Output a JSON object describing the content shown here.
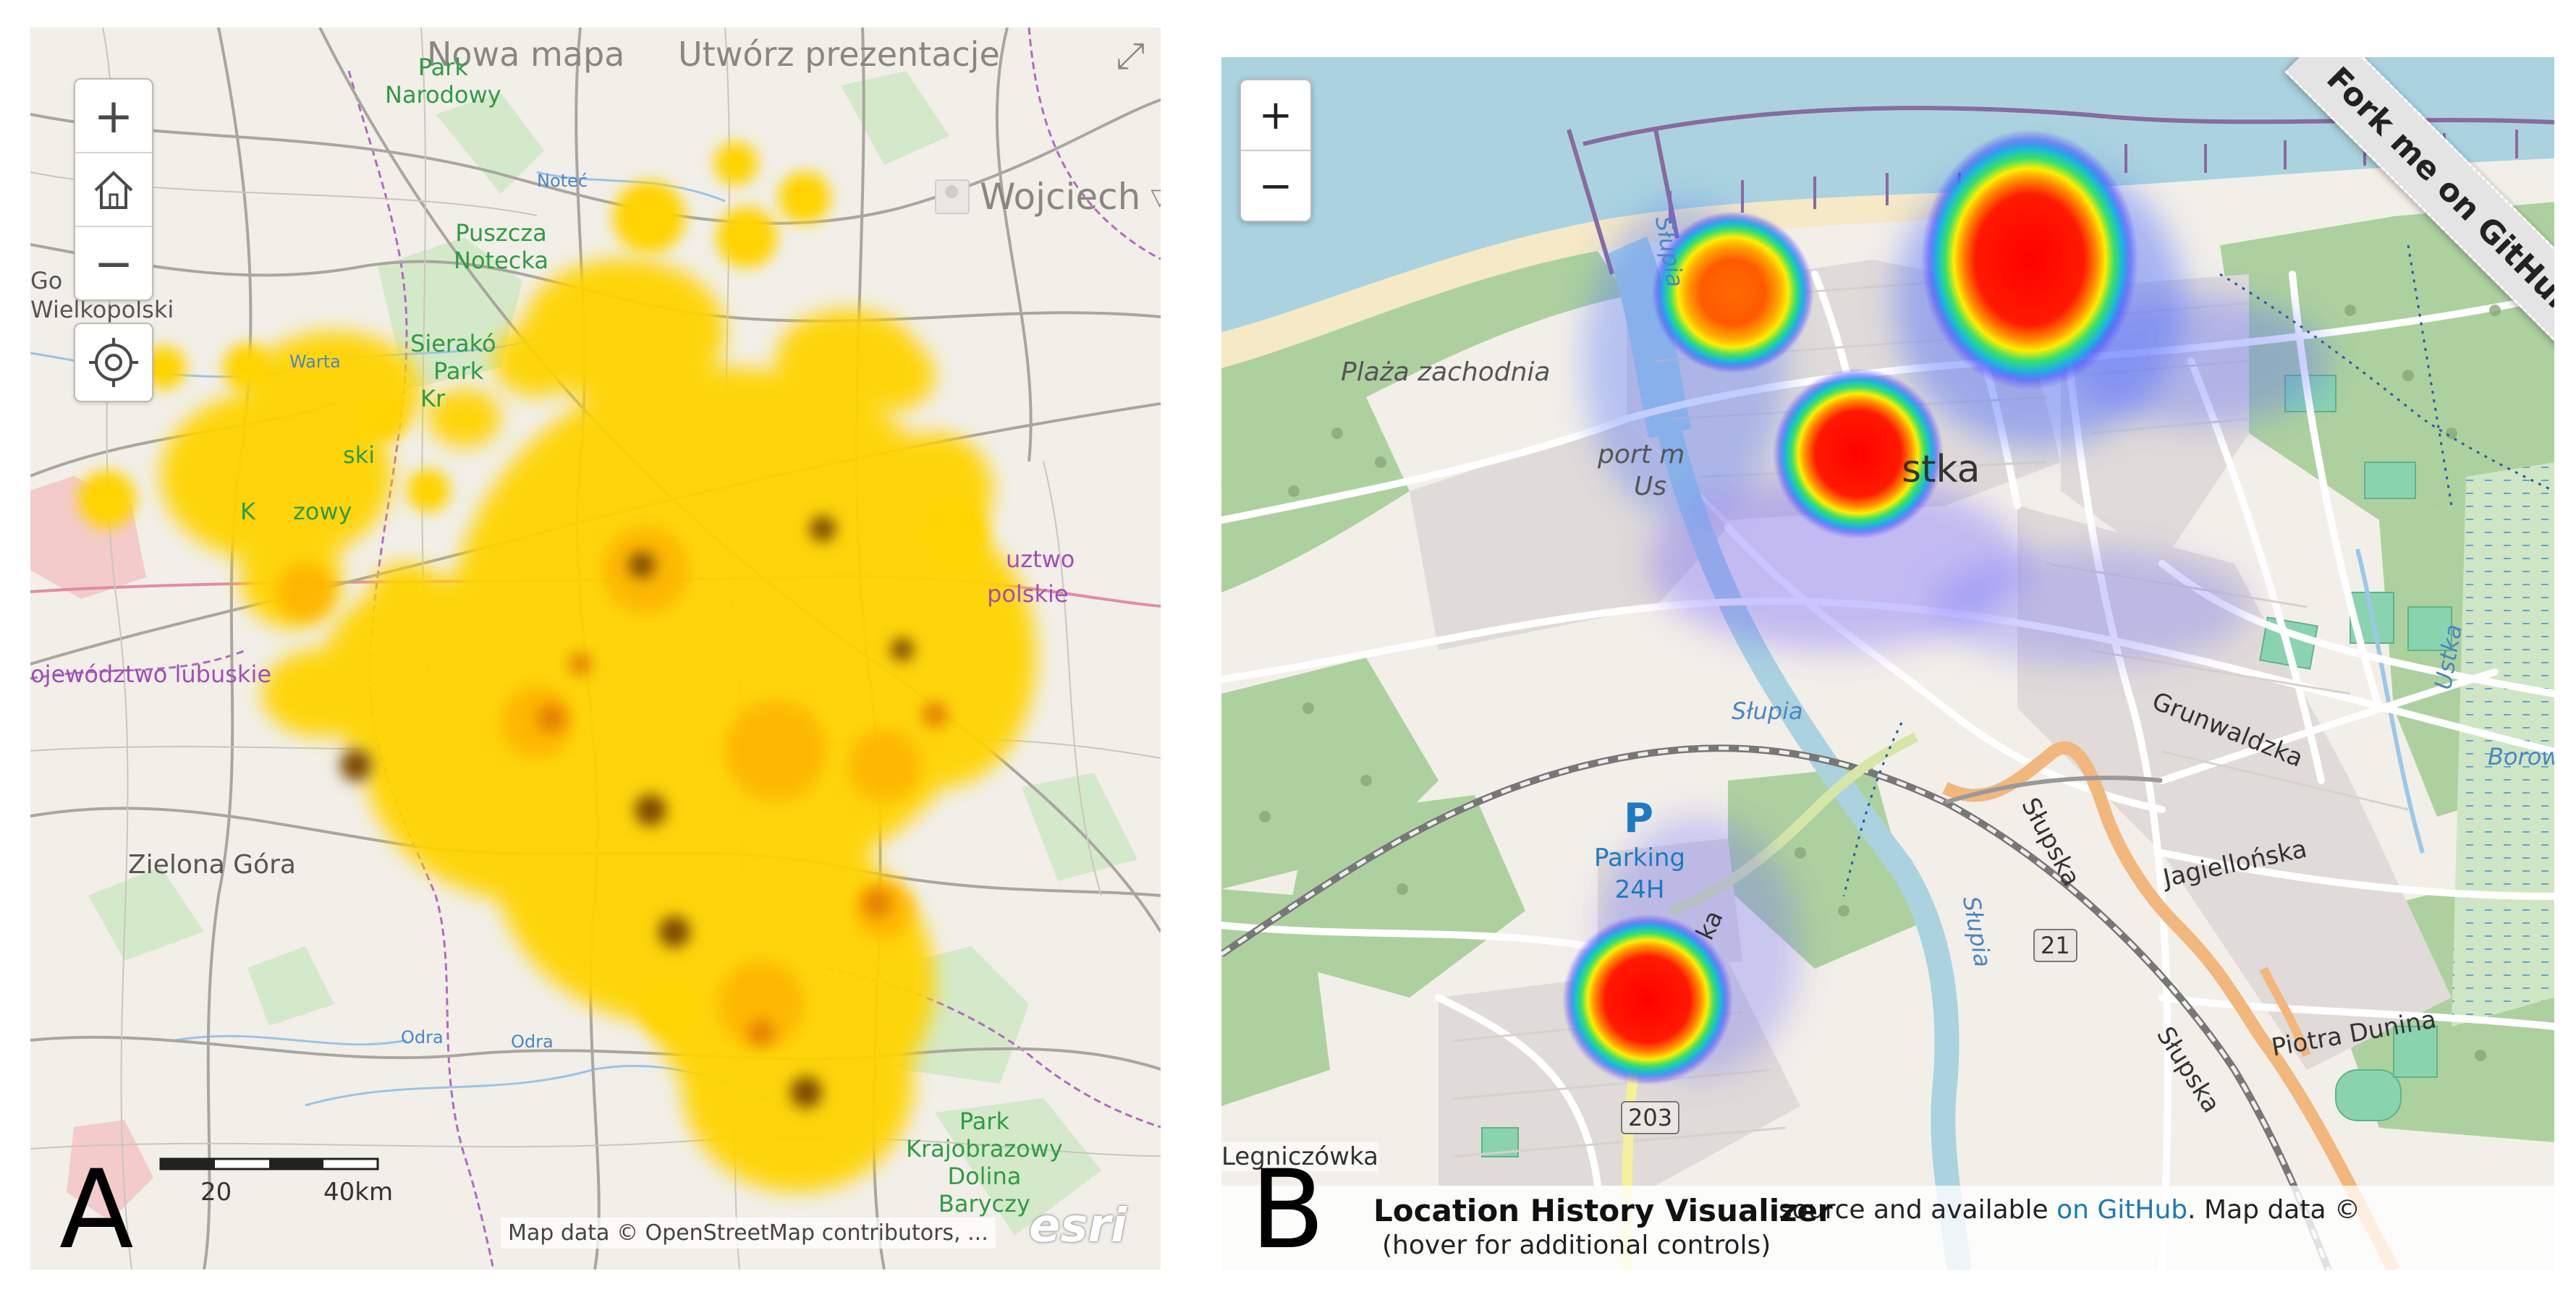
{
  "panelA": {
    "letter": "A",
    "menu": {
      "new_map": "Nowa mapa",
      "presentation": "Utwórz prezentacje"
    },
    "user": "Wojciech",
    "controls": {
      "zoom_in": "+",
      "home": "home-icon",
      "zoom_out": "−",
      "locate": "locate-icon"
    },
    "scale": {
      "mid": "20",
      "end": "40km"
    },
    "attribution": "Map data © OpenStreetMap contributors, ...",
    "esri": "esri",
    "labels": {
      "city1": "Zielona Góra",
      "region_lubuskie": "ojewództwo lubuskie",
      "region_wielk_1": "uztwo",
      "region_wielk_2": "polskie",
      "gorzow_1": "Go",
      "gorzow_2": "Wielkopolski",
      "park_narodowy_1": "Park",
      "park_narodowy_2": "Narodowy",
      "puszcza_1": "Puszcza",
      "puszcza_2": "Notecka",
      "sierakow_1": "Sierakó",
      "sierakow_2": "Park",
      "sierakow_3": "Kr",
      "krz_1": "ski",
      "krz_2": "K",
      "krz_3": "zowy",
      "park_krajo_1": "Park",
      "park_krajo_2": "Krajobrazowy",
      "park_krajo_3": "Dolina",
      "park_krajo_4": "Baryczy",
      "river_notec": "Noteć",
      "river_warta": "Warta",
      "river_odra1": "Odra",
      "river_odra2": "Odra"
    },
    "heat_color": "#ffd400"
  },
  "panelB": {
    "letter": "B",
    "zoom_in": "+",
    "zoom_out": "−",
    "ribbon": "Fork me on GitHub",
    "title": "Location History Visualizer",
    "subtitle": "(hover for additional controls)",
    "credit_pre": "source and available ",
    "credit_link": "on GitHub",
    "credit_post": ". Map data ©",
    "labels": {
      "beach": "Plaża zachodnia",
      "port_1": "port m",
      "port_2": "Us",
      "town": "stka",
      "parking_p": "P",
      "parking_1": "Parking",
      "parking_2": "24H",
      "grunwaldzka": "Grunwaldzka",
      "jagiellonska": "Jagiellońska",
      "slupska1": "Słupska",
      "slupska2": "Słupska",
      "dunina": "Piotra Dunina",
      "borowina": "Borowin",
      "legnicz": "Legniczówka",
      "slupia1": "Słupia",
      "slupia2": "Słupia",
      "slupia3": "Słupia",
      "ustka_river": "Ustka",
      "ka": "ka",
      "road21": "21",
      "road203": "203"
    },
    "hotspot_colors": [
      "#ff0000",
      "#ffee00",
      "#00e07a",
      "#2f5bff"
    ]
  }
}
